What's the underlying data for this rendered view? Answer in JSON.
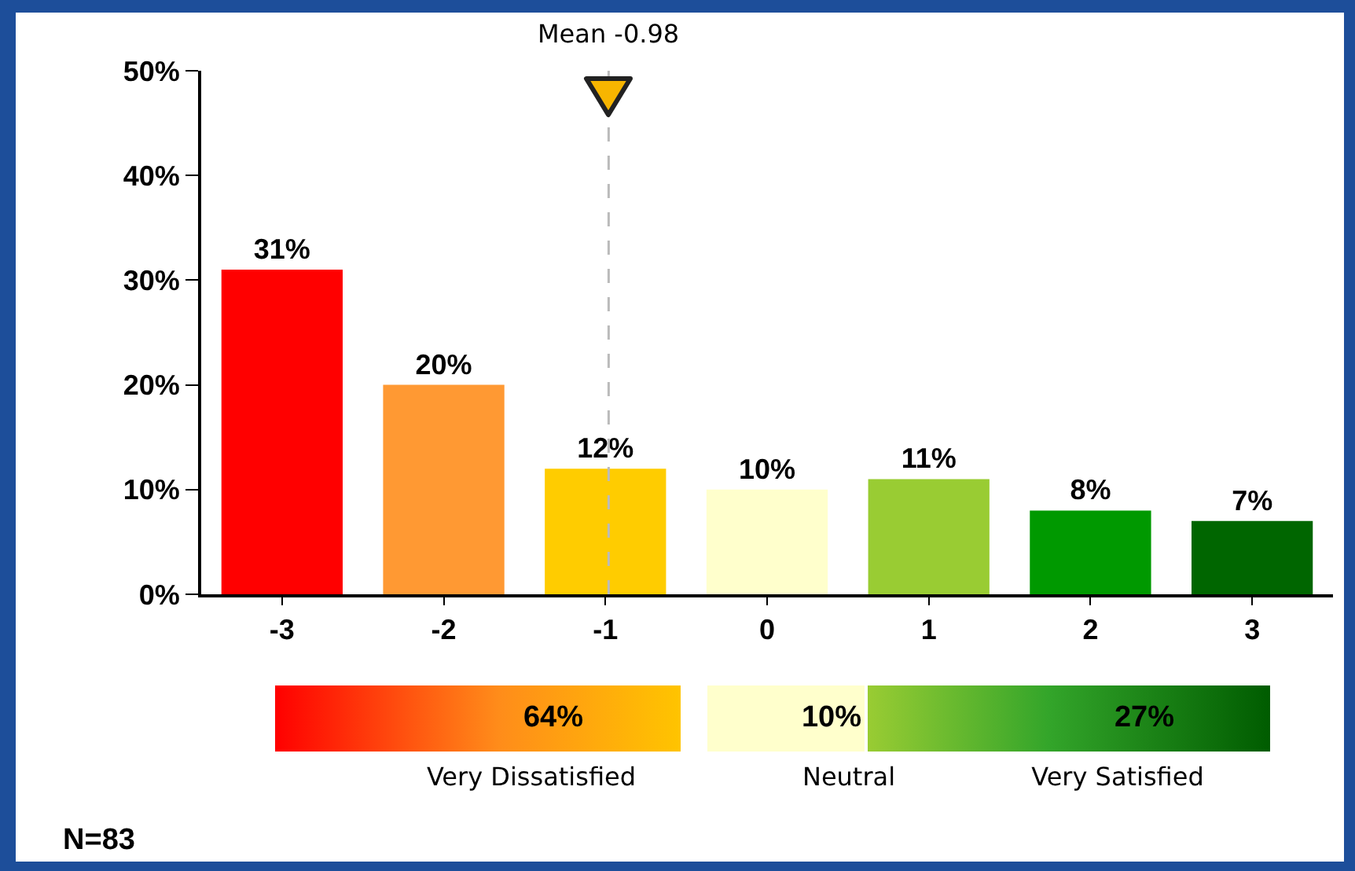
{
  "chart_data": {
    "type": "bar",
    "x": [
      -3,
      -2,
      -1,
      0,
      1,
      2,
      3
    ],
    "values": [
      31,
      20,
      12,
      10,
      11,
      8,
      7
    ],
    "colors": [
      "#ff0000",
      "#ff9933",
      "#ffcc00",
      "#ffffcc",
      "#99cc33",
      "#009900",
      "#006600"
    ],
    "value_labels": [
      "31%",
      "20%",
      "12%",
      "10%",
      "11%",
      "8%",
      "7%"
    ],
    "xlim": [
      -3.5,
      3.5
    ],
    "xticks": [
      -3,
      -2,
      -1,
      0,
      1,
      2,
      3
    ],
    "ylim": [
      0,
      50
    ],
    "yticks": [
      {
        "value": 0,
        "label": "0%"
      },
      {
        "value": 10,
        "label": "10%"
      },
      {
        "value": 20,
        "label": "20%"
      },
      {
        "value": 30,
        "label": "30%"
      },
      {
        "value": 40,
        "label": "40%"
      },
      {
        "value": 50,
        "label": "50%"
      }
    ],
    "ref_lines": [
      {
        "axis": "x",
        "value": -0.98,
        "label": "Mean -0.98",
        "color": "#bbbbbb",
        "line_style": "dashed"
      }
    ],
    "annotations": [
      "64%",
      "10%",
      "27%",
      "Very Dissatisfied",
      "Neutral",
      "Very Satisfied",
      "N=83"
    ],
    "grid": false
  }
}
